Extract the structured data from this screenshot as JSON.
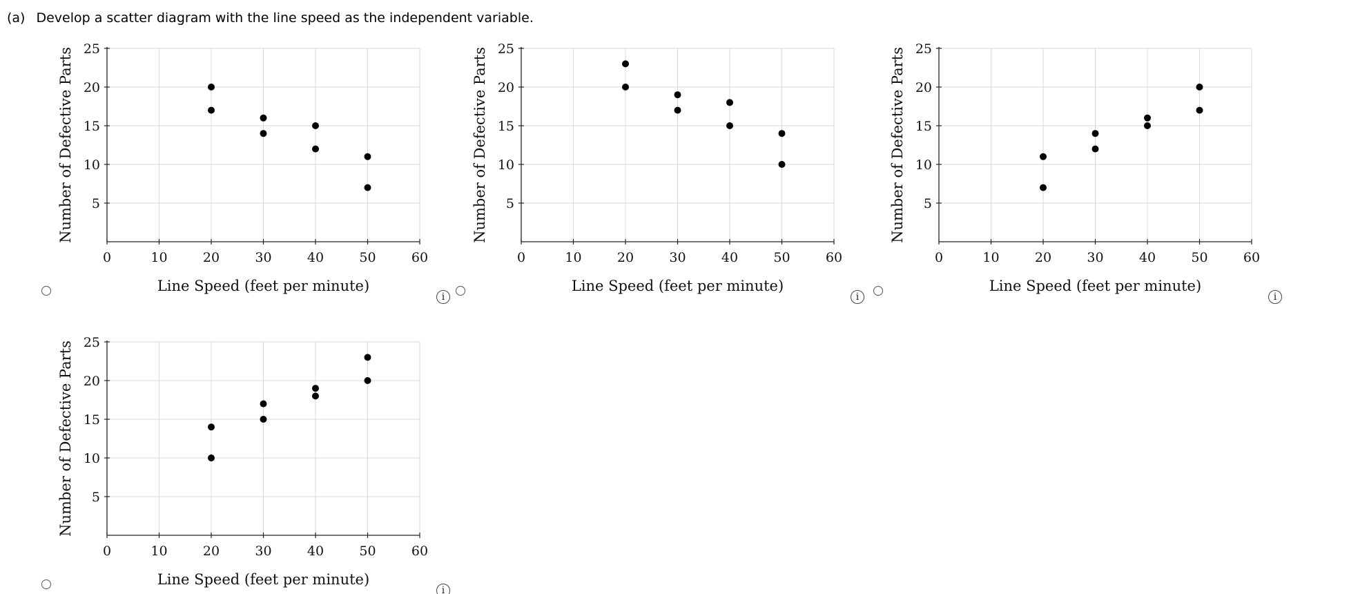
{
  "question": {
    "part": "(a)",
    "text": "Develop a scatter diagram with the line speed as the independent variable."
  },
  "info_symbol": "i",
  "chart_data": [
    {
      "type": "scatter",
      "xlabel": "Line Speed (feet per minute)",
      "ylabel": "Number of Defective Parts",
      "xlim": [
        0,
        60
      ],
      "ylim": [
        0,
        25
      ],
      "xticks": [
        0,
        10,
        20,
        30,
        40,
        50,
        60
      ],
      "yticks": [
        5,
        10,
        15,
        20,
        25
      ],
      "grid": true,
      "points": [
        {
          "x": 20,
          "y": 20
        },
        {
          "x": 20,
          "y": 17
        },
        {
          "x": 30,
          "y": 16
        },
        {
          "x": 30,
          "y": 14
        },
        {
          "x": 40,
          "y": 15
        },
        {
          "x": 40,
          "y": 12
        },
        {
          "x": 50,
          "y": 11
        },
        {
          "x": 50,
          "y": 7
        }
      ]
    },
    {
      "type": "scatter",
      "xlabel": "Line Speed (feet per minute)",
      "ylabel": "Number of Defective Parts",
      "xlim": [
        0,
        60
      ],
      "ylim": [
        0,
        25
      ],
      "xticks": [
        0,
        10,
        20,
        30,
        40,
        50,
        60
      ],
      "yticks": [
        5,
        10,
        15,
        20,
        25
      ],
      "grid": true,
      "points": [
        {
          "x": 20,
          "y": 23
        },
        {
          "x": 20,
          "y": 20
        },
        {
          "x": 30,
          "y": 19
        },
        {
          "x": 30,
          "y": 17
        },
        {
          "x": 40,
          "y": 18
        },
        {
          "x": 40,
          "y": 15
        },
        {
          "x": 50,
          "y": 14
        },
        {
          "x": 50,
          "y": 10
        }
      ]
    },
    {
      "type": "scatter",
      "xlabel": "Line Speed (feet per minute)",
      "ylabel": "Number of Defective Parts",
      "xlim": [
        0,
        60
      ],
      "ylim": [
        0,
        25
      ],
      "xticks": [
        0,
        10,
        20,
        30,
        40,
        50,
        60
      ],
      "yticks": [
        5,
        10,
        15,
        20,
        25
      ],
      "grid": true,
      "points": [
        {
          "x": 20,
          "y": 11
        },
        {
          "x": 20,
          "y": 7
        },
        {
          "x": 30,
          "y": 14
        },
        {
          "x": 30,
          "y": 12
        },
        {
          "x": 40,
          "y": 16
        },
        {
          "x": 40,
          "y": 15
        },
        {
          "x": 50,
          "y": 20
        },
        {
          "x": 50,
          "y": 17
        }
      ]
    },
    {
      "type": "scatter",
      "xlabel": "Line Speed (feet per minute)",
      "ylabel": "Number of Defective Parts",
      "xlim": [
        0,
        60
      ],
      "ylim": [
        0,
        25
      ],
      "xticks": [
        0,
        10,
        20,
        30,
        40,
        50,
        60
      ],
      "yticks": [
        5,
        10,
        15,
        20,
        25
      ],
      "grid": true,
      "points": [
        {
          "x": 20,
          "y": 14
        },
        {
          "x": 20,
          "y": 10
        },
        {
          "x": 30,
          "y": 17
        },
        {
          "x": 30,
          "y": 15
        },
        {
          "x": 40,
          "y": 19
        },
        {
          "x": 40,
          "y": 18
        },
        {
          "x": 50,
          "y": 23
        },
        {
          "x": 50,
          "y": 20
        }
      ]
    }
  ]
}
